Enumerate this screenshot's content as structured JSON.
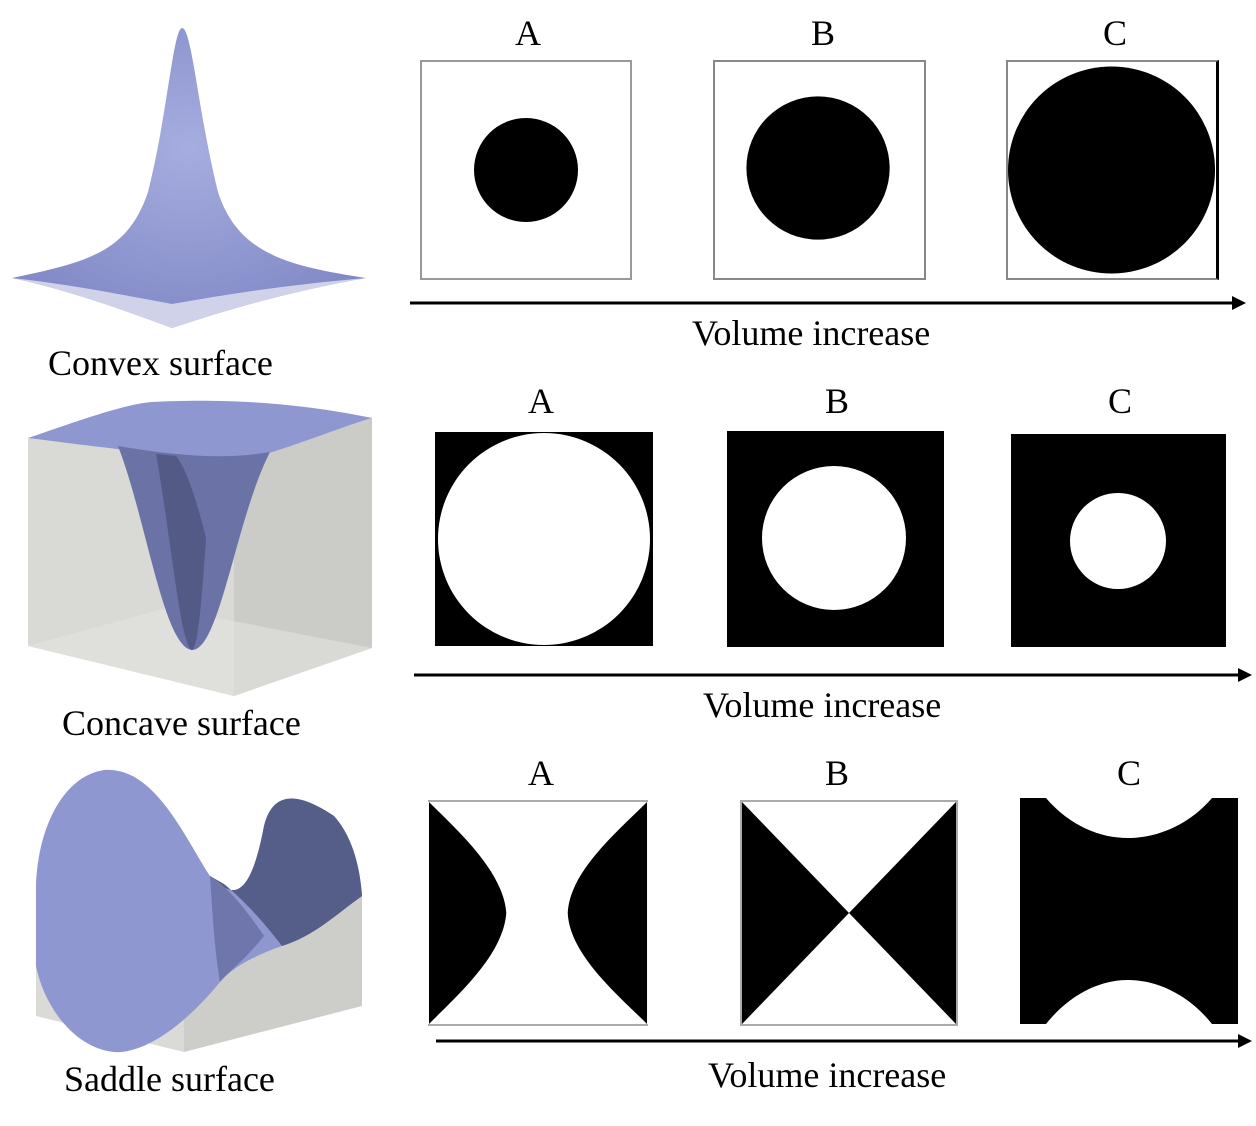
{
  "rows": [
    {
      "surface_caption": "Convex surface",
      "panel_labels": [
        "A",
        "B",
        "C"
      ],
      "axis_label": "Volume increase"
    },
    {
      "surface_caption": "Concave surface",
      "panel_labels": [
        "A",
        "B",
        "C"
      ],
      "axis_label": "Volume increase"
    },
    {
      "surface_caption": "Saddle surface",
      "panel_labels": [
        "A",
        "B",
        "C"
      ],
      "axis_label": "Volume increase"
    }
  ],
  "colors": {
    "surface": "#8f97d1",
    "surface_dark": "#4f577f",
    "box": "#d9d9d6",
    "fill": "#000000"
  }
}
